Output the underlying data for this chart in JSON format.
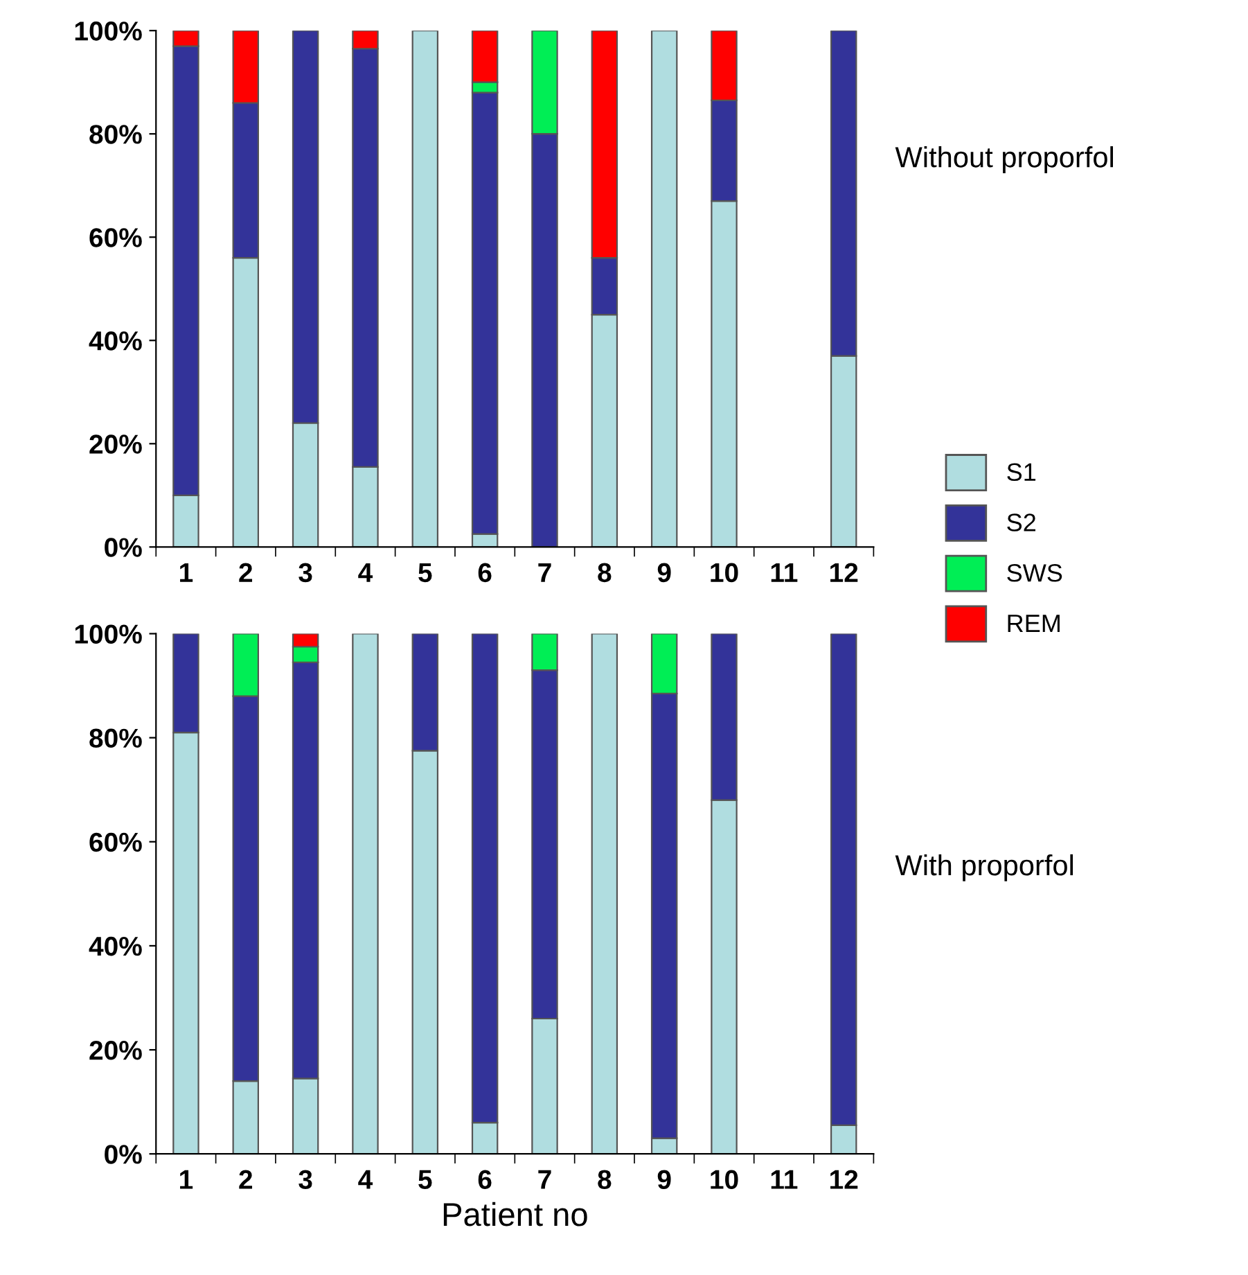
{
  "chart_data": [
    {
      "type": "bar",
      "stacked": true,
      "categories": [
        "1",
        "2",
        "3",
        "4",
        "5",
        "6",
        "7",
        "8",
        "9",
        "10",
        "11",
        "12"
      ],
      "series": [
        {
          "name": "S1",
          "color": "#b0dde0",
          "values": [
            10,
            56,
            24,
            15.5,
            100,
            2.5,
            0,
            45,
            100,
            67,
            null,
            37
          ]
        },
        {
          "name": "S2",
          "color": "#333399",
          "values": [
            87,
            30,
            76,
            81,
            0,
            85.5,
            80,
            11,
            0,
            19.5,
            null,
            63
          ]
        },
        {
          "name": "SWS",
          "color": "#00ee55",
          "values": [
            0,
            0,
            0,
            0,
            0,
            2,
            20,
            0,
            0,
            0,
            null,
            0
          ]
        },
        {
          "name": "REM",
          "color": "#ff0000",
          "values": [
            3,
            14,
            0,
            3.5,
            0,
            10,
            0,
            44,
            0,
            13.5,
            null,
            0
          ]
        }
      ],
      "ylim": [
        0,
        100
      ],
      "yticks": [
        {
          "value": 0,
          "label": "0%"
        },
        {
          "value": 20,
          "label": "20%"
        },
        {
          "value": 40,
          "label": "40%"
        },
        {
          "value": 60,
          "label": "60%"
        },
        {
          "value": 80,
          "label": "80%"
        },
        {
          "value": 100,
          "label": "100%"
        }
      ],
      "annotations": [
        "Without proporfol"
      ],
      "legend": "right"
    },
    {
      "type": "bar",
      "stacked": true,
      "categories": [
        "1",
        "2",
        "3",
        "4",
        "5",
        "6",
        "7",
        "8",
        "9",
        "10",
        "11",
        "12"
      ],
      "series": [
        {
          "color": "#b0dde0",
          "values": [
            81,
            14,
            14.5,
            100,
            77.5,
            6,
            26,
            100,
            3,
            68,
            null,
            5.5
          ]
        },
        {
          "color": "#333399",
          "values": [
            19,
            74,
            80,
            0,
            22.5,
            94,
            67,
            0,
            85.5,
            32,
            null,
            94.5
          ]
        },
        {
          "color": "#00ee55",
          "values": [
            0,
            12,
            3,
            0,
            0,
            0,
            7,
            0,
            11.5,
            0,
            null,
            0
          ]
        },
        {
          "color": "#ff0000",
          "values": [
            0,
            0,
            2.5,
            0,
            0,
            0,
            0,
            0,
            0,
            0,
            null,
            0
          ]
        }
      ],
      "ylim": [
        0,
        100
      ],
      "yticks": [
        {
          "value": 0,
          "label": "0%"
        },
        {
          "value": 20,
          "label": "20%"
        },
        {
          "value": 40,
          "label": "40%"
        },
        {
          "value": 60,
          "label": "60%"
        },
        {
          "value": 80,
          "label": "80%"
        },
        {
          "value": 100,
          "label": "100%"
        }
      ],
      "xlabel": "Patient no",
      "annotations": [
        "With proporfol"
      ]
    }
  ]
}
